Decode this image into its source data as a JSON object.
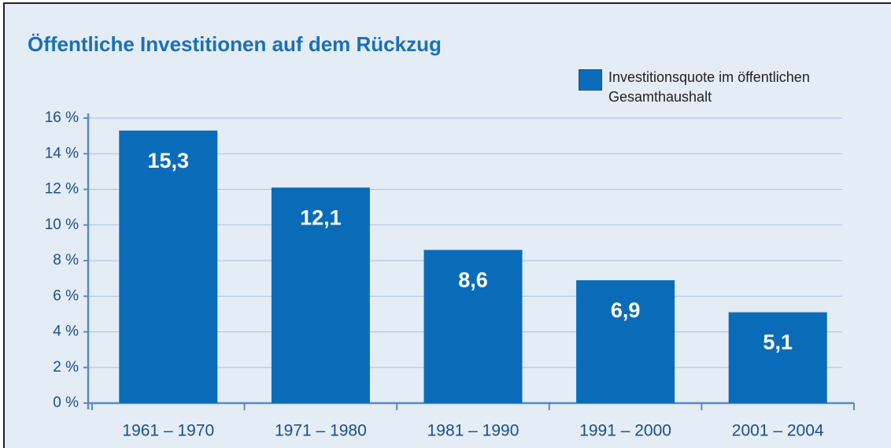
{
  "chart_data": {
    "type": "bar",
    "title": "Öffentliche Investitionen auf dem Rückzug",
    "categories": [
      "1961 – 1970",
      "1971 – 1980",
      "1981 – 1990",
      "1991 – 2000",
      "2001 – 2004"
    ],
    "series": [
      {
        "name": "Investitionsquote im öffentlichen Gesamthaushalt",
        "color": "#0a6cb8",
        "values": [
          15.3,
          12.1,
          8.6,
          6.9,
          5.1
        ],
        "value_labels": [
          "15,3",
          "12,1",
          "8,6",
          "6,9",
          "5,1"
        ]
      }
    ],
    "ylim": [
      0,
      16
    ],
    "yticks": [
      {
        "value": 0,
        "label": "0 %"
      },
      {
        "value": 2,
        "label": "2 %"
      },
      {
        "value": 4,
        "label": "4 %"
      },
      {
        "value": 6,
        "label": "6 %"
      },
      {
        "value": 8,
        "label": "8 %"
      },
      {
        "value": 10,
        "label": "10 %"
      },
      {
        "value": 12,
        "label": "12 %"
      },
      {
        "value": 14,
        "label": "14 %"
      },
      {
        "value": 16,
        "label": "16 %"
      }
    ],
    "grid": true
  }
}
